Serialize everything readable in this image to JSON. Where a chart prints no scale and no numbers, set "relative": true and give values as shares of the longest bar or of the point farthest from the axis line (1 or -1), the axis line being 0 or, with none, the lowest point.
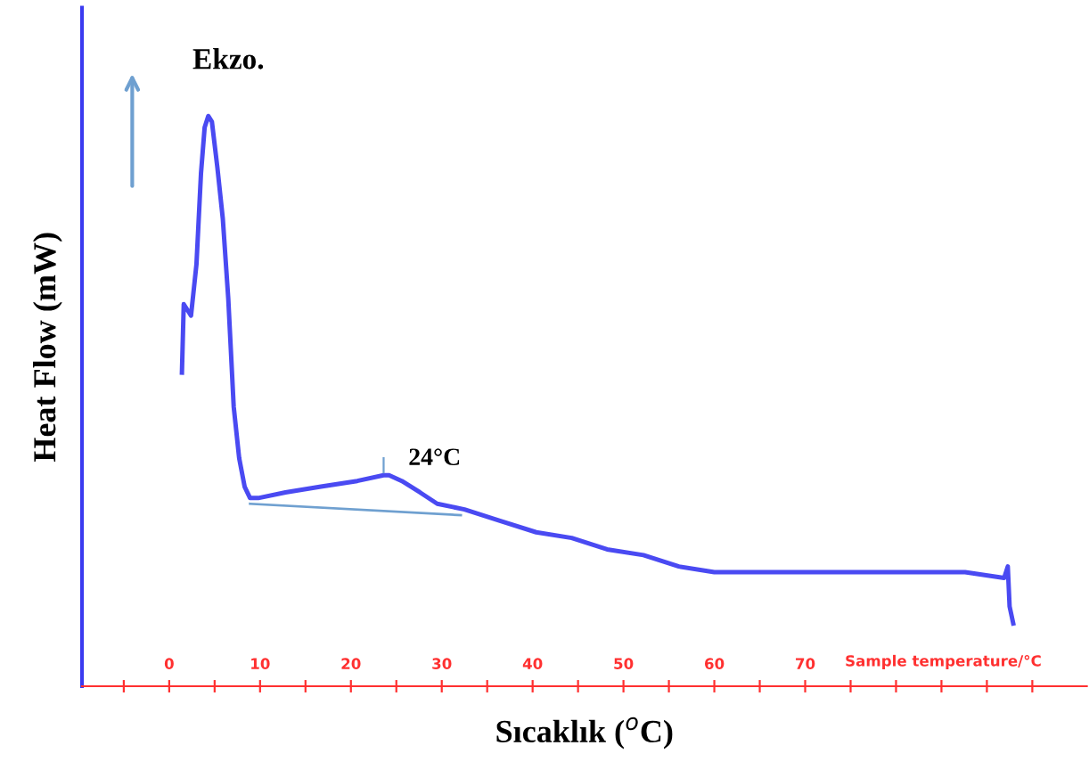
{
  "chart_data": {
    "type": "line",
    "relative": true,
    "xlabel": "Sıcaklık ($^{o}$C)",
    "ylabel": "Heat Flow (mW)",
    "x": [
      1.4,
      1.6,
      2.0,
      2.4,
      3.0,
      3.5,
      3.9,
      4.3,
      4.7,
      5.3,
      5.9,
      6.5,
      7.1,
      7.7,
      8.3,
      8.9,
      9.8,
      12.8,
      16.7,
      20.7,
      23.6,
      24.2,
      25.6,
      27.6,
      29.5,
      32.5,
      36.4,
      40.4,
      44.3,
      48.2,
      52.2,
      56.1,
      60.0,
      64.0,
      69.9,
      75.8,
      81.7,
      87.6,
      91.9,
      92.3,
      92.5,
      92.9
    ],
    "series": [
      {
        "color": "#4a4af2",
        "values": [
          0.55,
          0.67,
          0.66,
          0.65,
          0.74,
          0.9,
          0.98,
          1.0,
          0.99,
          0.91,
          0.82,
          0.68,
          0.49,
          0.4,
          0.35,
          0.33,
          0.33,
          0.34,
          0.35,
          0.36,
          0.37,
          0.37,
          0.36,
          0.34,
          0.32,
          0.31,
          0.29,
          0.27,
          0.26,
          0.24,
          0.23,
          0.21,
          0.2,
          0.2,
          0.2,
          0.2,
          0.2,
          0.2,
          0.19,
          0.21,
          0.14,
          0.11
        ]
      },
      {
        "color": "#6fa0d0",
        "x": [
          8.9,
          32.1
        ],
        "values": [
          0.32,
          0.3
        ]
      }
    ],
    "xlim": [
      -9.6,
      101
    ],
    "xticks": [
      {
        "value": -5,
        "label": null
      },
      0,
      {
        "value": 5,
        "label": null
      },
      10,
      {
        "value": 15,
        "label": null
      },
      20,
      {
        "value": 25,
        "label": null
      },
      30,
      {
        "value": 35,
        "label": null
      },
      40,
      {
        "value": 45,
        "label": null
      },
      50,
      {
        "value": 55,
        "label": null
      },
      60,
      {
        "value": 65,
        "label": null
      },
      70,
      {
        "value": 75,
        "label": null
      },
      {
        "value": 80,
        "label": null
      },
      {
        "value": 85,
        "label": null
      },
      {
        "value": 90,
        "label": null
      },
      {
        "value": 95,
        "label": null
      }
    ],
    "annotations": [
      "Ekzo.",
      "Sample temperature/°C",
      {
        "text": "24°C",
        "x": 23.6,
        "y": 0.37
      }
    ],
    "grid": false,
    "legend": false,
    "marker": "none",
    "line_style": "solid"
  }
}
